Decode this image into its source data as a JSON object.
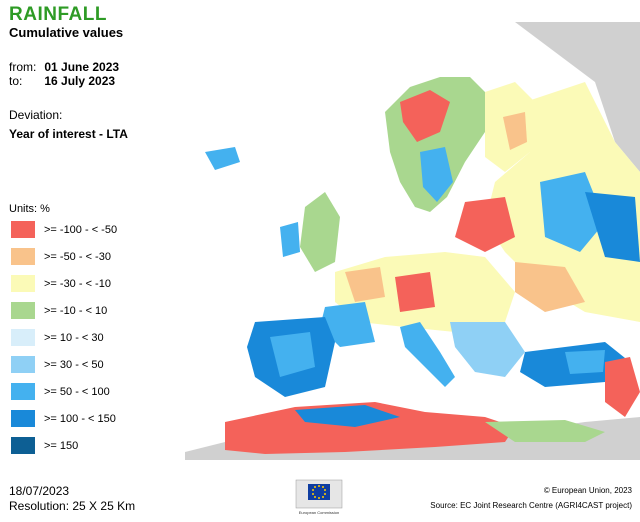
{
  "header": {
    "title": "RAINFALL",
    "subtitle": "Cumulative values",
    "from_label": "from:",
    "from_value": "01 June 2023",
    "to_label": "to:",
    "to_value": "16 July 2023",
    "deviation_label": "Deviation:",
    "deviation_value": "Year of interest - LTA"
  },
  "legend": {
    "units": "Units: %",
    "items": [
      {
        "label": ">= -100 - < -50",
        "color": "#f4625a"
      },
      {
        "label": ">= -50 - < -30",
        "color": "#f9c38b"
      },
      {
        "label": ">= -30 - < -10",
        "color": "#fbfab7"
      },
      {
        "label": ">= -10 - < 10",
        "color": "#a9d78f"
      },
      {
        "label": ">= 10 - < 30",
        "color": "#d8eefa"
      },
      {
        "label": ">= 30 - < 50",
        "color": "#8fd0f5"
      },
      {
        "label": ">= 50 - < 100",
        "color": "#44b1ef"
      },
      {
        "label": ">= 100 - < 150",
        "color": "#1989d9"
      },
      {
        "label": ">= 150",
        "color": "#0d5f94"
      }
    ]
  },
  "footer": {
    "date": "18/07/2023",
    "resolution": "Resolution: 25 X 25 Km",
    "copyright": "© European Union, 2023",
    "source": "Source: EC Joint Research Centre (AGRI4CAST project)",
    "logo_text": "European Commission",
    "logo_icon": "eu-flag-icon"
  },
  "map": {
    "background_color": "#d0d0d0",
    "sea_color": "#ffffff",
    "border_color": "#999999"
  }
}
